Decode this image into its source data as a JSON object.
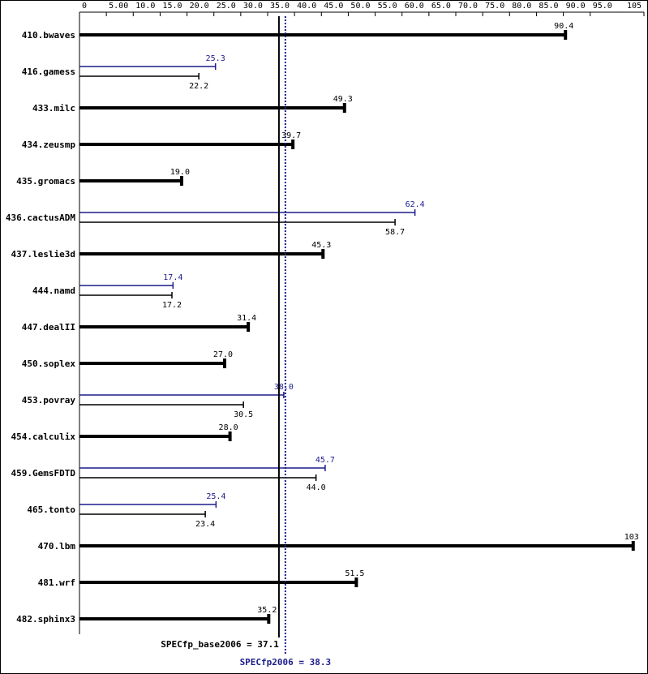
{
  "chart_data": {
    "type": "hbar",
    "categories": [
      "410.bwaves",
      "416.gamess",
      "433.milc",
      "434.zeusmp",
      "435.gromacs",
      "436.cactusADM",
      "437.leslie3d",
      "444.namd",
      "447.dealII",
      "450.soplex",
      "453.povray",
      "454.calculix",
      "459.GemsFDTD",
      "465.tonto",
      "470.lbm",
      "481.wrf",
      "482.sphinx3"
    ],
    "series": [
      {
        "name": "SPECfp_base2006",
        "color": "#000000",
        "values": [
          90.4,
          22.2,
          49.3,
          39.7,
          19.0,
          58.7,
          45.3,
          17.2,
          31.4,
          27.0,
          30.5,
          28.0,
          44.0,
          23.4,
          103,
          51.5,
          35.2
        ],
        "value_labels": [
          "90.4",
          "22.2",
          "49.3",
          "39.7",
          "19.0",
          "58.7",
          "45.3",
          "17.2",
          "31.4",
          "27.0",
          "30.5",
          "28.0",
          "44.0",
          "23.4",
          "103",
          "51.5",
          "35.2"
        ]
      },
      {
        "name": "SPECfp2006",
        "color": "#1c1c8c",
        "values": [
          null,
          25.3,
          null,
          null,
          null,
          62.4,
          null,
          17.4,
          null,
          null,
          38.0,
          null,
          45.7,
          25.4,
          null,
          null,
          null
        ],
        "value_labels": [
          null,
          "25.3",
          null,
          null,
          null,
          "62.4",
          null,
          "17.4",
          null,
          null,
          "38.0",
          null,
          "45.7",
          "25.4",
          null,
          null,
          null
        ]
      }
    ],
    "xlim": [
      0,
      105
    ],
    "xticks": [
      0,
      {
        "value": 5,
        "label": "5.00"
      },
      {
        "value": 10,
        "label": "10.0"
      },
      {
        "value": 15,
        "label": "15.0"
      },
      {
        "value": 20,
        "label": "20.0"
      },
      {
        "value": 25,
        "label": "25.0"
      },
      {
        "value": 30,
        "label": "30.0"
      },
      {
        "value": 35,
        "label": "35.0"
      },
      {
        "value": 40,
        "label": "40.0"
      },
      {
        "value": 45,
        "label": "45.0"
      },
      {
        "value": 50,
        "label": "50.0"
      },
      {
        "value": 55,
        "label": "55.0"
      },
      {
        "value": 60,
        "label": "60.0"
      },
      {
        "value": 65,
        "label": "65.0"
      },
      {
        "value": 70,
        "label": "70.0"
      },
      {
        "value": 75,
        "label": "75.0"
      },
      {
        "value": 80,
        "label": "80.0"
      },
      {
        "value": 85,
        "label": "85.0"
      },
      {
        "value": 90,
        "label": "90.0"
      },
      {
        "value": 95,
        "label": "95.0"
      },
      105
    ],
    "reference_lines": [
      {
        "value": 37.1,
        "label": "SPECfp_base2006 = 37.1",
        "color": "#000000",
        "style": "solid"
      },
      {
        "value": 38.3,
        "label": "SPECfp2006 = 38.3",
        "color": "#1c1c8c",
        "style": "dotted"
      }
    ]
  }
}
